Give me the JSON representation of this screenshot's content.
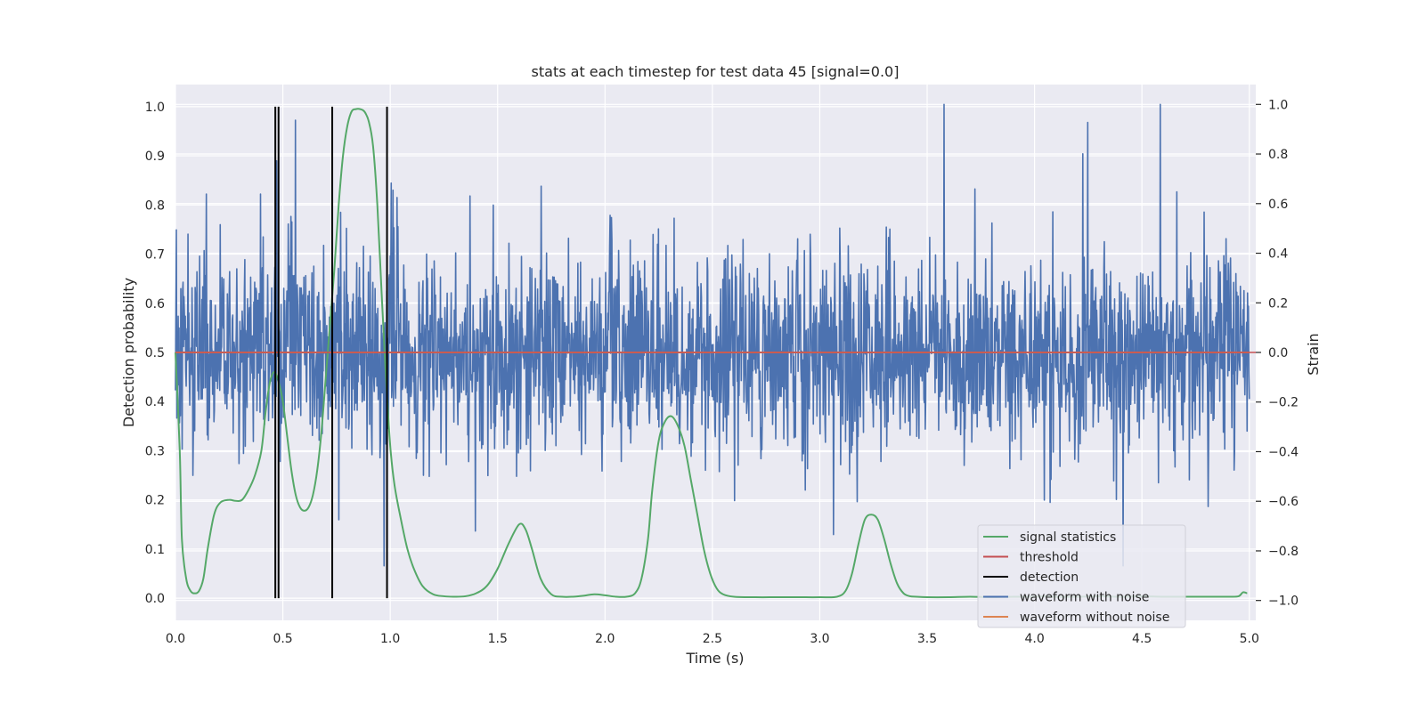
{
  "chart_data": {
    "type": "line",
    "title": "stats at each timestep for test data 45 [signal=0.0]",
    "xlabel": "Time (s)",
    "ylabel": "Detection probability",
    "y2label": "Strain",
    "xlim": [
      0.0,
      5.03
    ],
    "ylim": [
      -0.045,
      1.045
    ],
    "y2lim": [
      -1.08,
      1.08
    ],
    "x_ticks": [
      0.0,
      0.5,
      1.0,
      1.5,
      2.0,
      2.5,
      3.0,
      3.5,
      4.0,
      4.5,
      5.0
    ],
    "x_tick_labels": [
      "0.0",
      "0.5",
      "1.0",
      "1.5",
      "2.0",
      "2.5",
      "3.0",
      "3.5",
      "4.0",
      "4.5",
      "5.0"
    ],
    "y_ticks": [
      0.0,
      0.1,
      0.2,
      0.3,
      0.4,
      0.5,
      0.6,
      0.7,
      0.8,
      0.9,
      1.0
    ],
    "y_tick_labels": [
      "0.0",
      "0.1",
      "0.2",
      "0.3",
      "0.4",
      "0.5",
      "0.6",
      "0.7",
      "0.8",
      "0.9",
      "1.0"
    ],
    "y2_ticks": [
      1.0,
      0.8,
      0.6,
      0.4,
      0.2,
      0.0,
      -0.2,
      -0.4,
      -0.6,
      -0.8,
      -1.0
    ],
    "y2_tick_labels": [
      "1.0",
      "0.8",
      "0.6",
      "0.4",
      "0.2",
      "0.0",
      "−0.2",
      "−0.4",
      "−0.6",
      "−0.8",
      "−1.0"
    ],
    "grid": true,
    "legend_position": "lower-right",
    "series": [
      {
        "name": "waveform with noise",
        "axis": "right",
        "color": "#4c72b0",
        "kind": "noise",
        "envelope": [
          -0.86,
          1.0
        ],
        "note_seed": 45
      },
      {
        "name": "waveform without noise",
        "axis": "right",
        "color": "#dd8452",
        "x": [
          0.0,
          5.0
        ],
        "y": [
          0.0,
          0.0
        ]
      },
      {
        "name": "signal statistics",
        "axis": "left",
        "color": "#55a868",
        "x": [
          0.0,
          0.02,
          0.03,
          0.05,
          0.07,
          0.09,
          0.11,
          0.13,
          0.15,
          0.18,
          0.21,
          0.25,
          0.28,
          0.31,
          0.34,
          0.37,
          0.4,
          0.42,
          0.44,
          0.46,
          0.48,
          0.5,
          0.52,
          0.54,
          0.56,
          0.58,
          0.6,
          0.62,
          0.64,
          0.66,
          0.68,
          0.7,
          0.72,
          0.74,
          0.76,
          0.78,
          0.8,
          0.82,
          0.84,
          0.86,
          0.88,
          0.9,
          0.92,
          0.94,
          0.96,
          0.98,
          1.0,
          1.02,
          1.05,
          1.08,
          1.11,
          1.15,
          1.2,
          1.25,
          1.3,
          1.35,
          1.4,
          1.45,
          1.5,
          1.55,
          1.6,
          1.63,
          1.66,
          1.7,
          1.75,
          1.8,
          1.85,
          1.9,
          1.95,
          2.0,
          2.05,
          2.1,
          2.14,
          2.17,
          2.2,
          2.22,
          2.25,
          2.28,
          2.31,
          2.34,
          2.37,
          2.4,
          2.43,
          2.46,
          2.49,
          2.52,
          2.55,
          2.6,
          2.7,
          2.8,
          2.9,
          3.0,
          3.08,
          3.12,
          3.15,
          3.18,
          3.21,
          3.24,
          3.27,
          3.3,
          3.33,
          3.36,
          3.39,
          3.42,
          3.45,
          3.5,
          3.6,
          3.7,
          3.8,
          3.9,
          4.0,
          4.05,
          4.1,
          4.2,
          4.3,
          4.4,
          4.5,
          4.6,
          4.7,
          4.8,
          4.9,
          4.95,
          4.97,
          4.99
        ],
        "y": [
          0.5,
          0.3,
          0.12,
          0.04,
          0.015,
          0.01,
          0.015,
          0.04,
          0.1,
          0.17,
          0.195,
          0.2,
          0.198,
          0.2,
          0.22,
          0.25,
          0.3,
          0.38,
          0.44,
          0.46,
          0.44,
          0.4,
          0.33,
          0.26,
          0.21,
          0.185,
          0.178,
          0.185,
          0.21,
          0.26,
          0.34,
          0.45,
          0.56,
          0.67,
          0.8,
          0.9,
          0.96,
          0.99,
          0.995,
          0.995,
          0.99,
          0.97,
          0.92,
          0.8,
          0.62,
          0.45,
          0.31,
          0.23,
          0.16,
          0.1,
          0.06,
          0.025,
          0.008,
          0.004,
          0.003,
          0.004,
          0.01,
          0.025,
          0.06,
          0.11,
          0.15,
          0.14,
          0.1,
          0.04,
          0.008,
          0.003,
          0.003,
          0.005,
          0.008,
          0.006,
          0.003,
          0.003,
          0.01,
          0.04,
          0.12,
          0.22,
          0.32,
          0.36,
          0.37,
          0.35,
          0.31,
          0.24,
          0.17,
          0.1,
          0.05,
          0.02,
          0.008,
          0.003,
          0.002,
          0.002,
          0.002,
          0.002,
          0.003,
          0.015,
          0.05,
          0.11,
          0.16,
          0.17,
          0.16,
          0.12,
          0.07,
          0.03,
          0.01,
          0.004,
          0.003,
          0.002,
          0.002,
          0.003,
          0.002,
          0.003,
          0.003,
          0.004,
          0.003,
          0.003,
          0.004,
          0.003,
          0.004,
          0.003,
          0.003,
          0.003,
          0.003,
          0.004,
          0.012,
          0.01
        ]
      },
      {
        "name": "threshold",
        "axis": "left",
        "color": "#c44e52",
        "y_value": 0.5
      },
      {
        "name": "detection",
        "axis": "left",
        "color": "#000000",
        "x_values": [
          0.465,
          0.48,
          0.73,
          0.985
        ],
        "y_range": [
          0.0,
          1.0
        ]
      }
    ],
    "legend": [
      {
        "label": "signal statistics",
        "color": "#55a868"
      },
      {
        "label": "threshold",
        "color": "#c44e52"
      },
      {
        "label": "detection",
        "color": "#000000"
      },
      {
        "label": "waveform with noise",
        "color": "#4c72b0"
      },
      {
        "label": "waveform without noise",
        "color": "#dd8452"
      }
    ],
    "colors": {
      "plot_background": "#eaeaf2",
      "grid": "#ffffff",
      "text": "#262626"
    }
  }
}
